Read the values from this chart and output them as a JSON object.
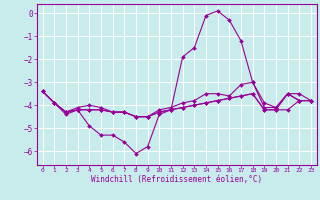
{
  "background_color": "#c8ecec",
  "grid_color": "#aadddd",
  "line_color": "#990099",
  "marker_color": "#990099",
  "xlabel": "Windchill (Refroidissement éolien,°C)",
  "xlabel_color": "#990099",
  "tick_color": "#990099",
  "spine_color": "#990099",
  "xlim": [
    -0.5,
    23.5
  ],
  "ylim": [
    -6.6,
    0.4
  ],
  "yticks": [
    0,
    -1,
    -2,
    -3,
    -4,
    -5,
    -6
  ],
  "xticks": [
    0,
    1,
    2,
    3,
    4,
    5,
    6,
    7,
    8,
    9,
    10,
    11,
    12,
    13,
    14,
    15,
    16,
    17,
    18,
    19,
    20,
    21,
    22,
    23
  ],
  "series": [
    {
      "x": [
        0,
        1,
        2,
        3,
        4,
        5,
        6,
        7,
        8,
        9,
        10,
        11,
        12,
        13,
        14,
        15,
        16,
        17,
        18,
        19,
        20,
        21,
        22,
        23
      ],
      "y": [
        -3.4,
        -3.9,
        -4.4,
        -4.2,
        -4.9,
        -5.3,
        -5.3,
        -5.6,
        -6.1,
        -5.8,
        -4.4,
        -4.2,
        -1.9,
        -1.5,
        -0.1,
        0.1,
        -0.3,
        -1.2,
        -3.0,
        -3.9,
        -4.1,
        -3.5,
        -3.5,
        -3.8
      ]
    },
    {
      "x": [
        0,
        1,
        2,
        3,
        4,
        5,
        6,
        7,
        8,
        9,
        10,
        11,
        12,
        13,
        14,
        15,
        16,
        17,
        18,
        19,
        20,
        21,
        22,
        23
      ],
      "y": [
        -3.4,
        -3.9,
        -4.3,
        -4.2,
        -4.2,
        -4.2,
        -4.3,
        -4.3,
        -4.5,
        -4.5,
        -4.3,
        -4.2,
        -4.1,
        -4.0,
        -3.9,
        -3.8,
        -3.7,
        -3.6,
        -3.5,
        -4.2,
        -4.2,
        -4.2,
        -3.8,
        -3.8
      ]
    },
    {
      "x": [
        0,
        1,
        2,
        3,
        4,
        5,
        6,
        7,
        8,
        9,
        10,
        11,
        12,
        13,
        14,
        15,
        16,
        17,
        18,
        19,
        20,
        21,
        22,
        23
      ],
      "y": [
        -3.4,
        -3.9,
        -4.3,
        -4.2,
        -4.2,
        -4.2,
        -4.3,
        -4.3,
        -4.5,
        -4.5,
        -4.3,
        -4.2,
        -4.1,
        -4.0,
        -3.9,
        -3.8,
        -3.7,
        -3.6,
        -3.5,
        -4.2,
        -4.2,
        -3.5,
        -3.8,
        -3.8
      ]
    },
    {
      "x": [
        0,
        1,
        2,
        3,
        4,
        5,
        6,
        7,
        8,
        9,
        10,
        11,
        12,
        13,
        14,
        15,
        16,
        17,
        18,
        19,
        20,
        21,
        22,
        23
      ],
      "y": [
        -3.4,
        -3.9,
        -4.3,
        -4.1,
        -4.0,
        -4.1,
        -4.3,
        -4.3,
        -4.5,
        -4.5,
        -4.2,
        -4.1,
        -3.9,
        -3.8,
        -3.5,
        -3.5,
        -3.6,
        -3.1,
        -3.0,
        -4.1,
        -4.1,
        -3.5,
        -3.8,
        -3.8
      ]
    }
  ]
}
